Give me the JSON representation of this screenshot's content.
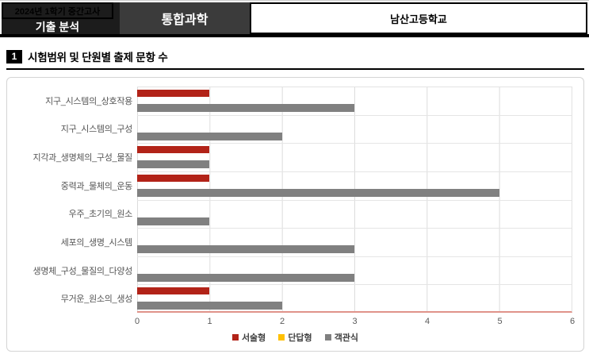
{
  "header": {
    "exam_period": "2024년 1학기 중간고사",
    "doc_type": "기출 분석",
    "subject": "통합과학",
    "school": "남산고등학교"
  },
  "section": {
    "number": "1",
    "title": "시험범위 및 단원별 출제 문항 수"
  },
  "chart_data": {
    "type": "bar",
    "orientation": "horizontal",
    "title": "시험범위 및 단원별 출제 문항 수",
    "categories": [
      "지구_시스템의_상호작용",
      "지구_시스템의_구성",
      "지각과_생명체의_구성_물질",
      "중력과_물체의_운동",
      "우주_초기의_원소",
      "세포의_생명_시스템",
      "생명체_구성_물질의_다양성",
      "무거운_원소의_생성"
    ],
    "series": [
      {
        "name": "서술형",
        "color": "#b22318",
        "values": [
          1,
          0,
          1,
          1,
          0,
          0,
          0,
          1
        ]
      },
      {
        "name": "단답형",
        "color": "#ffc000",
        "values": [
          0,
          0,
          0,
          0,
          0,
          0,
          0,
          0
        ]
      },
      {
        "name": "객관식",
        "color": "#808080",
        "values": [
          3,
          2,
          1,
          5,
          1,
          3,
          3,
          2
        ]
      }
    ],
    "xlim": [
      0,
      6
    ],
    "x_ticks": [
      "0",
      "1",
      "2",
      "3",
      "4",
      "5",
      "6"
    ],
    "grid": true,
    "legend_position": "bottom",
    "axis_line_color": "#e0938a",
    "gridline_color": "#dcdcdc"
  }
}
